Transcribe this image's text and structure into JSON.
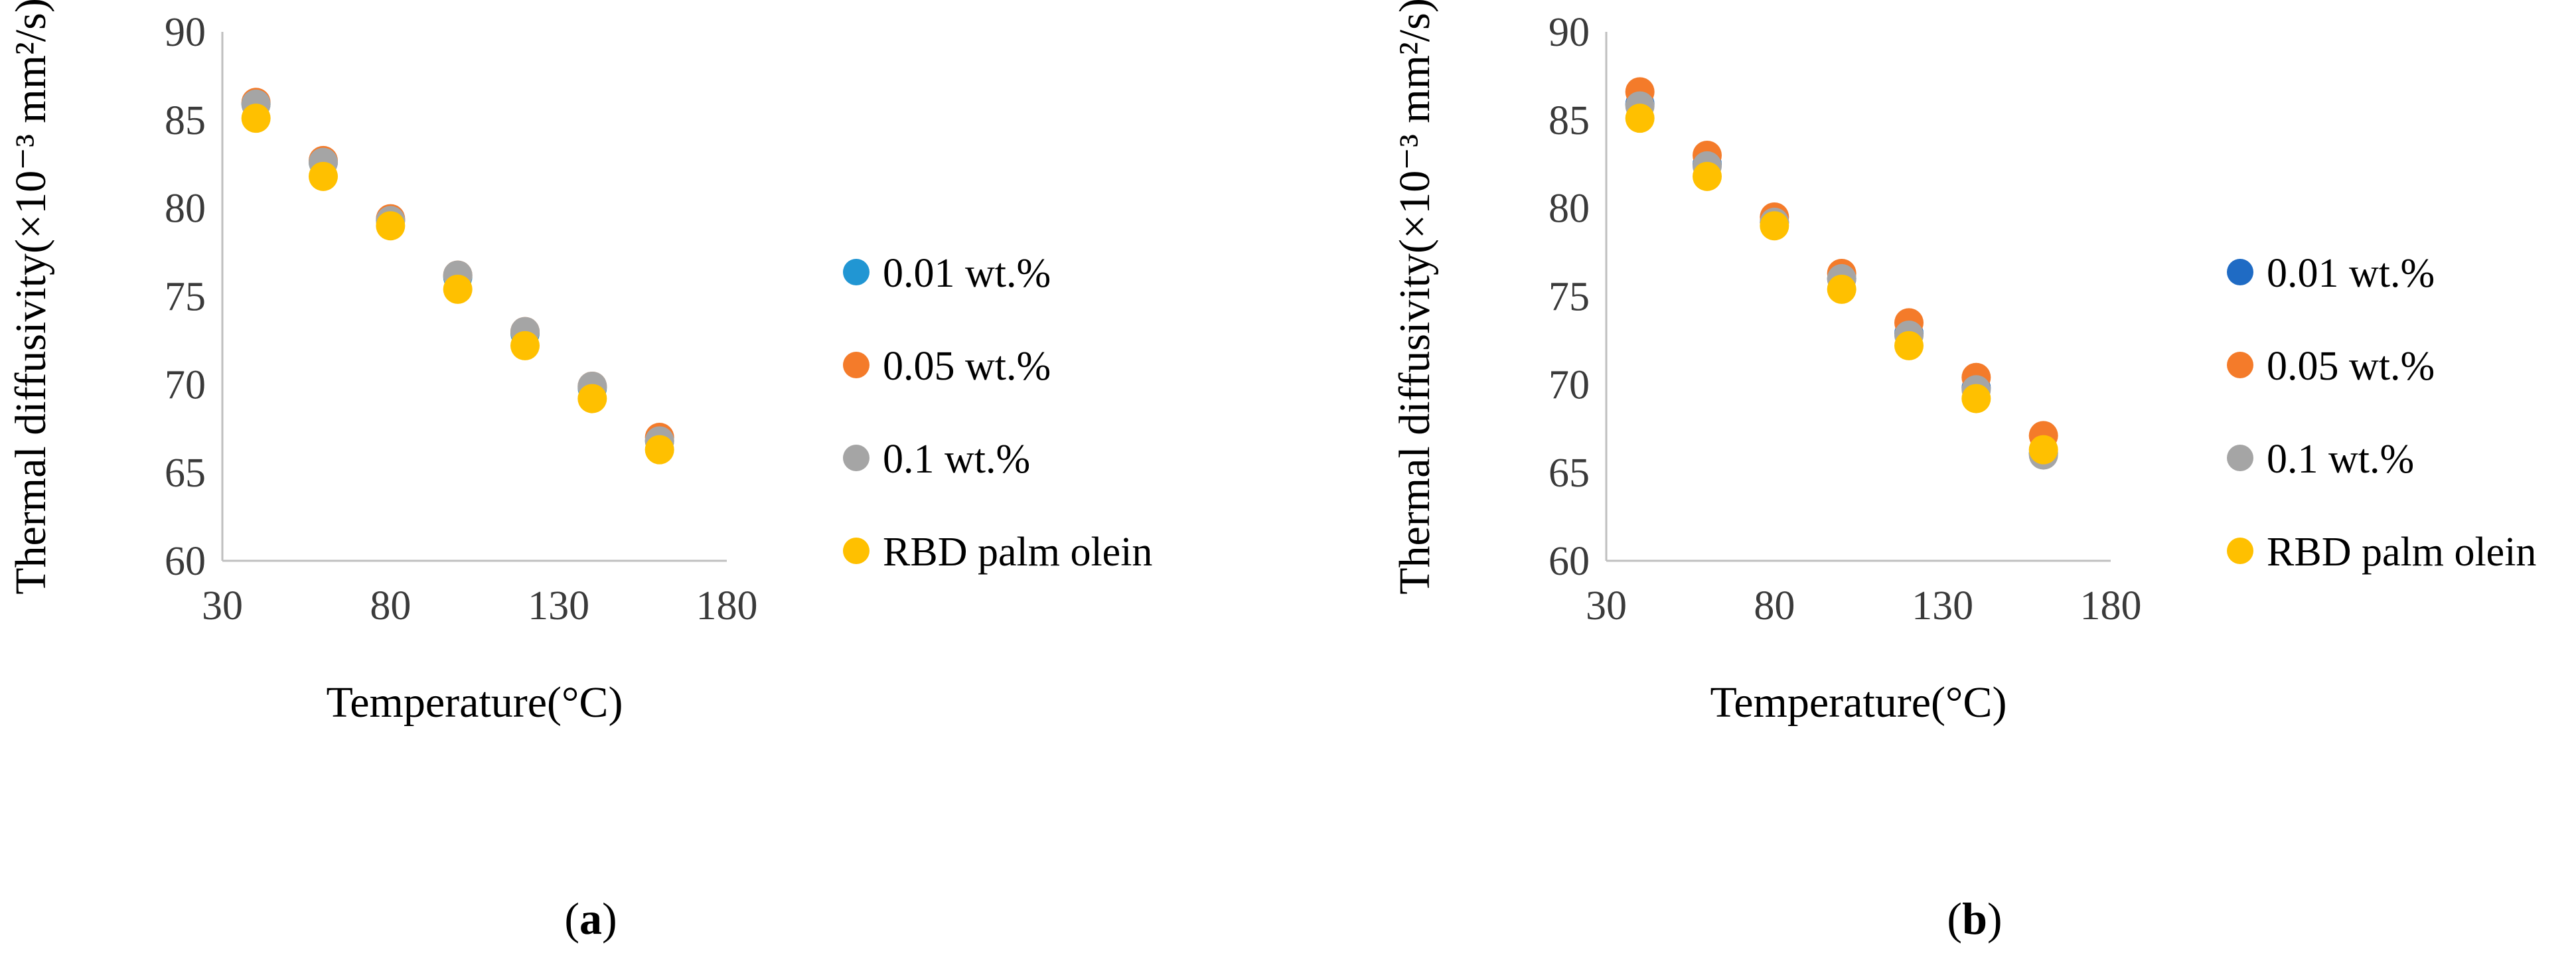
{
  "chart_data": [
    {
      "type": "scatter",
      "panel": "a",
      "caption": "a",
      "xlabel": "Temperature(°C)",
      "ylabel": "Thermal diffusivity(×10⁻³ mm²/s)",
      "xlim": [
        30,
        180
      ],
      "ylim": [
        60,
        90
      ],
      "xticks": [
        30,
        80,
        130,
        180
      ],
      "yticks": [
        60,
        65,
        70,
        75,
        80,
        85,
        90
      ],
      "legend_position": "right",
      "series": [
        {
          "name": "0.01 wt.%",
          "color": "#2196d3",
          "x": [
            40,
            60,
            80,
            100,
            120,
            140,
            160
          ],
          "y": [
            85.9,
            82.6,
            79.3,
            76.1,
            72.9,
            69.8,
            66.8
          ]
        },
        {
          "name": "0.05 wt.%",
          "color": "#f47b2a",
          "x": [
            40,
            60,
            80,
            100,
            120,
            140,
            160
          ],
          "y": [
            86.0,
            82.7,
            79.4,
            76.2,
            73.0,
            69.9,
            67.0
          ]
        },
        {
          "name": "0.1 wt.%",
          "color": "#a5a5a5",
          "x": [
            40,
            60,
            80,
            100,
            120,
            140,
            160
          ],
          "y": [
            85.9,
            82.6,
            79.3,
            76.2,
            73.0,
            69.9,
            66.8
          ]
        },
        {
          "name": "RBD palm olein",
          "color": "#ffc000",
          "x": [
            40,
            60,
            80,
            100,
            120,
            140,
            160
          ],
          "y": [
            85.1,
            81.8,
            79.0,
            75.4,
            72.2,
            69.2,
            66.3
          ]
        }
      ]
    },
    {
      "type": "scatter",
      "panel": "b",
      "caption": "b",
      "xlabel": "Temperature(°C)",
      "ylabel": "Thermal diffusivity(×10⁻³ mm²/s)",
      "xlim": [
        30,
        180
      ],
      "ylim": [
        60,
        90
      ],
      "xticks": [
        30,
        80,
        130,
        180
      ],
      "yticks": [
        60,
        65,
        70,
        75,
        80,
        85,
        90
      ],
      "legend_position": "right",
      "series": [
        {
          "name": "0.01 wt.%",
          "color": "#1f6bc4",
          "x": [
            40,
            60,
            80,
            100,
            120,
            140,
            160
          ],
          "y": [
            85.9,
            82.5,
            79.2,
            76.0,
            72.9,
            69.8,
            66.1
          ]
        },
        {
          "name": "0.05 wt.%",
          "color": "#f47b2a",
          "x": [
            40,
            60,
            80,
            100,
            120,
            140,
            160
          ],
          "y": [
            86.6,
            83.0,
            79.5,
            76.3,
            73.5,
            70.4,
            67.1
          ]
        },
        {
          "name": "0.1 wt.%",
          "color": "#a5a5a5",
          "x": [
            40,
            60,
            80,
            100,
            120,
            140,
            160
          ],
          "y": [
            85.8,
            82.4,
            79.2,
            76.0,
            72.8,
            69.7,
            66.0
          ]
        },
        {
          "name": "RBD palm olein",
          "color": "#ffc000",
          "x": [
            40,
            60,
            80,
            100,
            120,
            140,
            160
          ],
          "y": [
            85.1,
            81.8,
            79.0,
            75.4,
            72.2,
            69.2,
            66.3
          ]
        }
      ]
    }
  ]
}
